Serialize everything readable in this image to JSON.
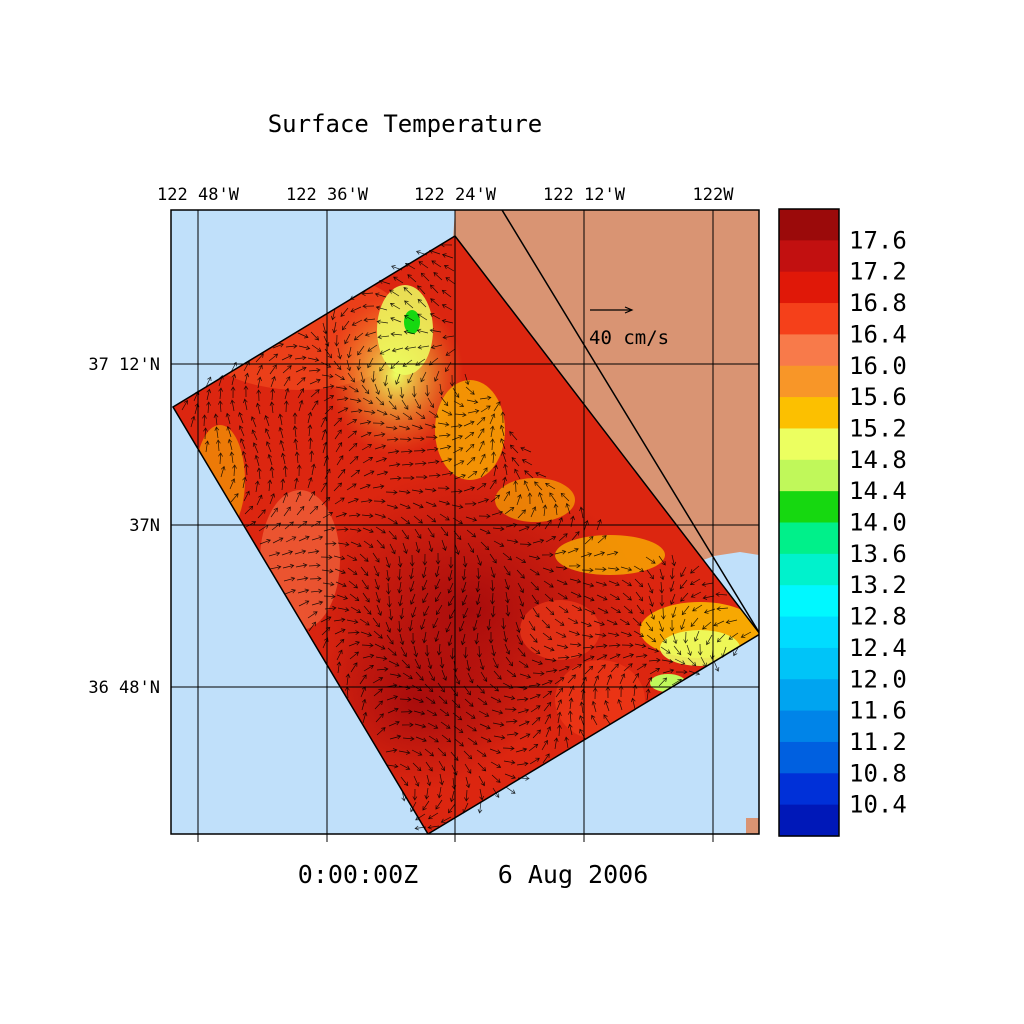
{
  "title": "Surface Temperature",
  "timestamp": "0:00:00Z",
  "date": "6 Aug 2006",
  "map": {
    "longitude_labels": [
      "122 48'W",
      "122 36'W",
      "122 24'W",
      "122 12'W",
      "122W"
    ],
    "latitude_labels": [
      "37 12'N",
      "37N",
      "36 48'N"
    ],
    "scale_vector_label": "40 cm/s",
    "ocean_color": "#c0e0fa",
    "land_color": "#d99473",
    "icon": "current-vector-arrow"
  },
  "colorbar": {
    "labels": [
      "17.6",
      "17.2",
      "16.8",
      "16.4",
      "16.0",
      "15.6",
      "15.2",
      "14.8",
      "14.4",
      "14.0",
      "13.6",
      "13.2",
      "12.8",
      "12.4",
      "12.0",
      "11.6",
      "11.2",
      "10.8",
      "10.4"
    ],
    "colors": [
      "#9b0a0a",
      "#c21010",
      "#e01808",
      "#f5401a",
      "#f87a4a",
      "#f89628",
      "#fcc000",
      "#ecff60",
      "#c0f85a",
      "#16d810",
      "#00f08a",
      "#00f2cc",
      "#00f8ff",
      "#00dcff",
      "#00c4f8",
      "#00a4f0",
      "#0084e8",
      "#0060e0",
      "#0030d8",
      "#0018b8"
    ]
  }
}
